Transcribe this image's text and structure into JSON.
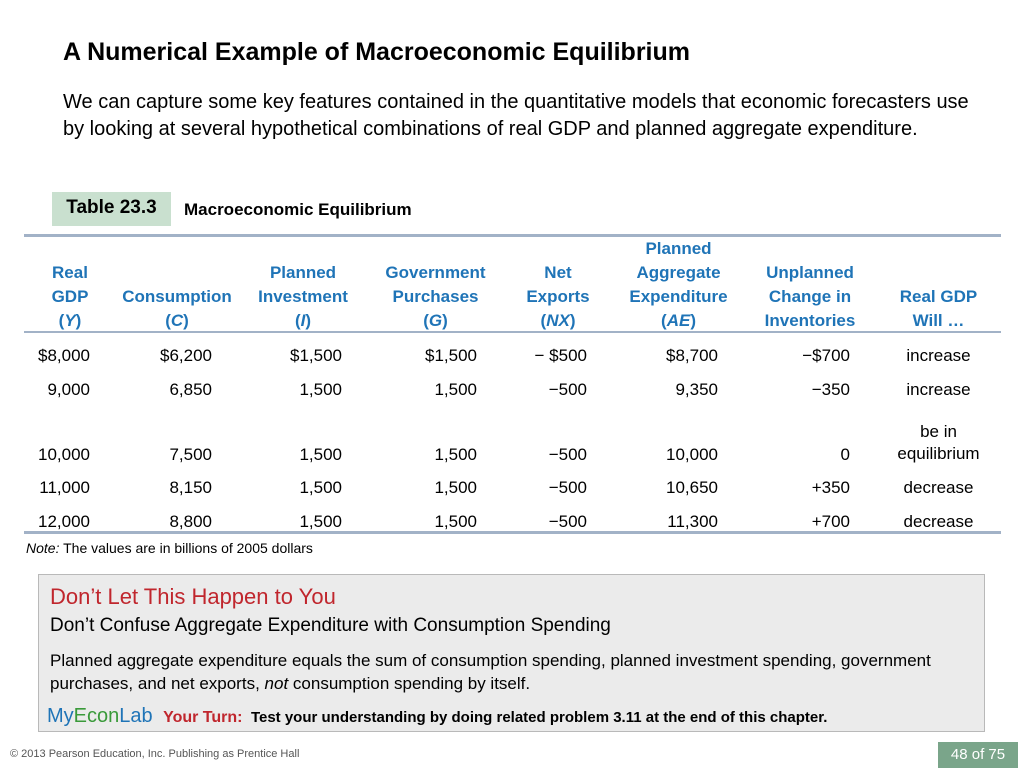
{
  "slide": {
    "title": "A Numerical Example of Macroeconomic Equilibrium",
    "intro": "We can capture some key features contained in the quantitative models that economic forecasters use by looking at several hypothetical combinations of real GDP and planned aggregate expenditure."
  },
  "table": {
    "label": "Table 23.3",
    "caption": "Macroeconomic Equilibrium",
    "headers": [
      {
        "line1": "Real",
        "line2": "GDP",
        "sym": "Y"
      },
      {
        "line1": "Consumption",
        "sym": "C"
      },
      {
        "line1": "Planned",
        "line2": "Investment",
        "sym": "I"
      },
      {
        "line1": "Government",
        "line2": "Purchases",
        "sym": "G"
      },
      {
        "line1": "Net",
        "line2": "Exports",
        "sym": "NX"
      },
      {
        "line1": "Planned",
        "line2": "Aggregate",
        "line3": "Expenditure",
        "sym": "AE"
      },
      {
        "line1": "Unplanned",
        "line2": "Change in",
        "line3": "Inventories"
      },
      {
        "line1": "Real GDP",
        "line2": "Will …"
      }
    ],
    "rows": [
      {
        "y": "$8,000",
        "c": "$6,200",
        "i": "$1,500",
        "g": "$1,500",
        "nx": "− $500",
        "ae": "$8,700",
        "inv": "−$700",
        "will": "increase"
      },
      {
        "y": "9,000",
        "c": "6,850",
        "i": "1,500",
        "g": "1,500",
        "nx": "−500",
        "ae": "9,350",
        "inv": "−350",
        "will": "increase"
      },
      {
        "y": "10,000",
        "c": "7,500",
        "i": "1,500",
        "g": "1,500",
        "nx": "−500",
        "ae": "10,000",
        "inv": "0",
        "will": "be in",
        "will2": "equilibrium"
      },
      {
        "y": "11,000",
        "c": "8,150",
        "i": "1,500",
        "g": "1,500",
        "nx": "−500",
        "ae": "10,650",
        "inv": "+350",
        "will": "decrease"
      },
      {
        "y": "12,000",
        "c": "8,800",
        "i": "1,500",
        "g": "1,500",
        "nx": "−500",
        "ae": "11,300",
        "inv": "+700",
        "will": "decrease"
      }
    ],
    "note_label": "Note:",
    "note_text": "The values are in billions of 2005 dollars"
  },
  "callout": {
    "heading": "Don’t Let This Happen to You",
    "subheading": "Don’t Confuse Aggregate Expenditure with Consumption Spending",
    "body_part1": "Planned aggregate expenditure equals the sum of consumption spending, planned investment spending, government purchases, and net exports,",
    "body_emph": "not",
    "body_part2": "consumption spending by itself.",
    "logo_my": "My",
    "logo_econ": "Econ",
    "logo_lab": "Lab",
    "your_turn": "Your Turn:",
    "your_turn_text": "Test your understanding by doing related problem 3.11 at the end of this chapter."
  },
  "footer": {
    "copyright": "© 2013 Pearson Education, Inc. Publishing as Prentice Hall",
    "page_current": "48",
    "page_of": "of",
    "page_total": "75"
  },
  "colors": {
    "header_text": "#1f74b7",
    "rule": "#a2b2c7",
    "badge": "#c9e0cf",
    "callout_heading": "#c0262d",
    "callout_bg": "#ebebeb",
    "pager_bg": "#7aa58a"
  }
}
